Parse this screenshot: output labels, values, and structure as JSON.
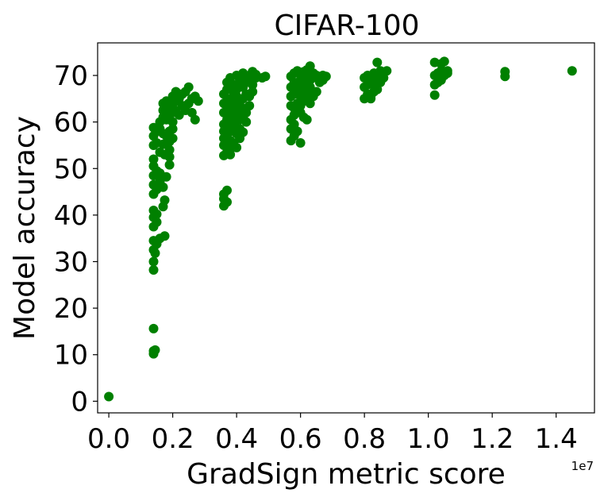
{
  "chart_data": {
    "type": "scatter",
    "title": "CIFAR-100",
    "xlabel": "GradSign metric score",
    "ylabel": "Model accuracy",
    "x_offset_label": "1e7",
    "xlim": [
      -0.035,
      1.52
    ],
    "ylim": [
      -2.5,
      77
    ],
    "xticks": [
      0.0,
      0.2,
      0.4,
      0.6,
      0.8,
      1.0,
      1.2,
      1.4
    ],
    "xtick_labels": [
      "0.0",
      "0.2",
      "0.4",
      "0.6",
      "0.8",
      "1.0",
      "1.2",
      "1.4"
    ],
    "yticks": [
      0,
      10,
      20,
      30,
      40,
      50,
      60,
      70
    ],
    "ytick_labels": [
      "0",
      "10",
      "20",
      "30",
      "40",
      "50",
      "60",
      "70"
    ],
    "grid": false,
    "legend": false,
    "marker_color": "#008000",
    "series": [
      {
        "points": [
          [
            0.0,
            1.0
          ],
          [
            0.14,
            10.2
          ],
          [
            0.14,
            10.8
          ],
          [
            0.145,
            11.0
          ],
          [
            0.14,
            15.6
          ],
          [
            0.14,
            28.2
          ],
          [
            0.14,
            30.0
          ],
          [
            0.145,
            31.8
          ],
          [
            0.14,
            32.5
          ],
          [
            0.15,
            33.8
          ],
          [
            0.14,
            34.5
          ],
          [
            0.16,
            35.0
          ],
          [
            0.175,
            35.5
          ],
          [
            0.14,
            37.5
          ],
          [
            0.15,
            38.5
          ],
          [
            0.14,
            39.5
          ],
          [
            0.15,
            40.2
          ],
          [
            0.14,
            41.0
          ],
          [
            0.17,
            41.8
          ],
          [
            0.175,
            43.2
          ],
          [
            0.14,
            44.5
          ],
          [
            0.15,
            45.5
          ],
          [
            0.14,
            46.5
          ],
          [
            0.16,
            47.2
          ],
          [
            0.17,
            46.0
          ],
          [
            0.14,
            48.5
          ],
          [
            0.15,
            49.5
          ],
          [
            0.14,
            50.5
          ],
          [
            0.16,
            49.0
          ],
          [
            0.18,
            48.2
          ],
          [
            0.19,
            50.8
          ],
          [
            0.14,
            52.0
          ],
          [
            0.16,
            53.5
          ],
          [
            0.175,
            53.0
          ],
          [
            0.19,
            52.5
          ],
          [
            0.14,
            55.0
          ],
          [
            0.15,
            55.5
          ],
          [
            0.17,
            55.2
          ],
          [
            0.19,
            55.8
          ],
          [
            0.14,
            57.0
          ],
          [
            0.15,
            58.0
          ],
          [
            0.16,
            58.5
          ],
          [
            0.14,
            58.8
          ],
          [
            0.17,
            57.5
          ],
          [
            0.18,
            57.0
          ],
          [
            0.19,
            58.0
          ],
          [
            0.2,
            56.5
          ],
          [
            0.16,
            60.0
          ],
          [
            0.17,
            61.0
          ],
          [
            0.18,
            60.5
          ],
          [
            0.19,
            61.5
          ],
          [
            0.2,
            60.0
          ],
          [
            0.17,
            62.5
          ],
          [
            0.18,
            63.0
          ],
          [
            0.19,
            63.5
          ],
          [
            0.2,
            62.0
          ],
          [
            0.17,
            64.0
          ],
          [
            0.18,
            64.5
          ],
          [
            0.19,
            64.0
          ],
          [
            0.2,
            65.5
          ],
          [
            0.21,
            64.5
          ],
          [
            0.22,
            65.0
          ],
          [
            0.23,
            63.5
          ],
          [
            0.24,
            62.5
          ],
          [
            0.2,
            63.0
          ],
          [
            0.21,
            62.5
          ],
          [
            0.22,
            61.5
          ],
          [
            0.23,
            66.0
          ],
          [
            0.24,
            66.5
          ],
          [
            0.25,
            67.5
          ],
          [
            0.25,
            64.0
          ],
          [
            0.26,
            65.0
          ],
          [
            0.27,
            65.5
          ],
          [
            0.28,
            64.5
          ],
          [
            0.26,
            62.0
          ],
          [
            0.27,
            60.5
          ],
          [
            0.21,
            66.5
          ],
          [
            0.22,
            66.0
          ],
          [
            0.24,
            63.5
          ],
          [
            0.2,
            58.5
          ],
          [
            0.19,
            54.0
          ],
          [
            0.36,
            42.0
          ],
          [
            0.37,
            42.8
          ],
          [
            0.36,
            43.5
          ],
          [
            0.36,
            44.5
          ],
          [
            0.37,
            45.3
          ],
          [
            0.36,
            52.8
          ],
          [
            0.37,
            53.5
          ],
          [
            0.38,
            54.2
          ],
          [
            0.36,
            55.0
          ],
          [
            0.37,
            55.5
          ],
          [
            0.38,
            56.0
          ],
          [
            0.39,
            55.5
          ],
          [
            0.4,
            54.5
          ],
          [
            0.36,
            56.5
          ],
          [
            0.37,
            57.0
          ],
          [
            0.36,
            58.0
          ],
          [
            0.37,
            58.5
          ],
          [
            0.38,
            59.0
          ],
          [
            0.39,
            58.0
          ],
          [
            0.4,
            57.5
          ],
          [
            0.41,
            58.5
          ],
          [
            0.42,
            57.8
          ],
          [
            0.36,
            59.5
          ],
          [
            0.37,
            60.5
          ],
          [
            0.38,
            61.0
          ],
          [
            0.39,
            60.0
          ],
          [
            0.4,
            61.5
          ],
          [
            0.41,
            60.5
          ],
          [
            0.42,
            61.0
          ],
          [
            0.43,
            60.0
          ],
          [
            0.36,
            62.0
          ],
          [
            0.37,
            62.5
          ],
          [
            0.38,
            63.0
          ],
          [
            0.39,
            62.0
          ],
          [
            0.4,
            63.5
          ],
          [
            0.41,
            62.5
          ],
          [
            0.42,
            63.0
          ],
          [
            0.43,
            62.0
          ],
          [
            0.44,
            63.5
          ],
          [
            0.36,
            64.0
          ],
          [
            0.37,
            64.5
          ],
          [
            0.38,
            65.0
          ],
          [
            0.39,
            64.0
          ],
          [
            0.4,
            65.5
          ],
          [
            0.41,
            64.5
          ],
          [
            0.42,
            65.0
          ],
          [
            0.43,
            66.0
          ],
          [
            0.44,
            65.5
          ],
          [
            0.45,
            66.5
          ],
          [
            0.36,
            66.0
          ],
          [
            0.37,
            67.0
          ],
          [
            0.38,
            67.5
          ],
          [
            0.39,
            66.5
          ],
          [
            0.4,
            67.0
          ],
          [
            0.41,
            68.0
          ],
          [
            0.42,
            67.5
          ],
          [
            0.43,
            68.5
          ],
          [
            0.44,
            69.0
          ],
          [
            0.45,
            68.0
          ],
          [
            0.46,
            69.5
          ],
          [
            0.37,
            68.5
          ],
          [
            0.38,
            69.5
          ],
          [
            0.39,
            68.0
          ],
          [
            0.4,
            70.0
          ],
          [
            0.41,
            69.0
          ],
          [
            0.42,
            70.5
          ],
          [
            0.43,
            69.5
          ],
          [
            0.44,
            70.0
          ],
          [
            0.45,
            70.8
          ],
          [
            0.46,
            70.2
          ],
          [
            0.48,
            69.5
          ],
          [
            0.49,
            69.8
          ],
          [
            0.4,
            59.5
          ],
          [
            0.41,
            56.5
          ],
          [
            0.38,
            53.0
          ],
          [
            0.57,
            56.0
          ],
          [
            0.58,
            57.0
          ],
          [
            0.59,
            58.0
          ],
          [
            0.6,
            55.5
          ],
          [
            0.57,
            58.5
          ],
          [
            0.58,
            59.5
          ],
          [
            0.57,
            60.5
          ],
          [
            0.58,
            61.5
          ],
          [
            0.59,
            62.5
          ],
          [
            0.57,
            63.5
          ],
          [
            0.58,
            63.0
          ],
          [
            0.59,
            64.0
          ],
          [
            0.6,
            63.5
          ],
          [
            0.61,
            64.5
          ],
          [
            0.62,
            65.0
          ],
          [
            0.63,
            64.0
          ],
          [
            0.57,
            65.5
          ],
          [
            0.58,
            66.0
          ],
          [
            0.59,
            66.5
          ],
          [
            0.6,
            65.5
          ],
          [
            0.61,
            67.0
          ],
          [
            0.62,
            66.5
          ],
          [
            0.63,
            67.5
          ],
          [
            0.64,
            66.0
          ],
          [
            0.57,
            67.5
          ],
          [
            0.58,
            68.5
          ],
          [
            0.59,
            68.0
          ],
          [
            0.6,
            69.0
          ],
          [
            0.61,
            68.5
          ],
          [
            0.62,
            69.5
          ],
          [
            0.63,
            69.0
          ],
          [
            0.64,
            70.0
          ],
          [
            0.65,
            69.5
          ],
          [
            0.57,
            69.8
          ],
          [
            0.58,
            70.5
          ],
          [
            0.59,
            71.0
          ],
          [
            0.6,
            70.2
          ],
          [
            0.61,
            70.8
          ],
          [
            0.62,
            71.2
          ],
          [
            0.63,
            72.0
          ],
          [
            0.64,
            70.5
          ],
          [
            0.65,
            70.0
          ],
          [
            0.66,
            69.5
          ],
          [
            0.67,
            70.0
          ],
          [
            0.68,
            69.8
          ],
          [
            0.6,
            62.0
          ],
          [
            0.61,
            61.0
          ],
          [
            0.62,
            60.5
          ],
          [
            0.64,
            65.5
          ],
          [
            0.65,
            66.5
          ],
          [
            0.66,
            68.5
          ],
          [
            0.67,
            69.0
          ],
          [
            0.8,
            65.0
          ],
          [
            0.81,
            66.0
          ],
          [
            0.82,
            65.5
          ],
          [
            0.83,
            66.5
          ],
          [
            0.84,
            67.0
          ],
          [
            0.8,
            67.5
          ],
          [
            0.81,
            68.0
          ],
          [
            0.82,
            68.5
          ],
          [
            0.83,
            68.0
          ],
          [
            0.84,
            69.0
          ],
          [
            0.85,
            68.5
          ],
          [
            0.86,
            69.5
          ],
          [
            0.8,
            69.5
          ],
          [
            0.81,
            70.0
          ],
          [
            0.82,
            69.8
          ],
          [
            0.83,
            70.5
          ],
          [
            0.84,
            70.0
          ],
          [
            0.85,
            71.0
          ],
          [
            0.86,
            70.5
          ],
          [
            0.87,
            71.0
          ],
          [
            0.84,
            72.8
          ],
          [
            0.82,
            65.0
          ],
          [
            1.02,
            65.8
          ],
          [
            1.02,
            68.0
          ],
          [
            1.03,
            68.5
          ],
          [
            1.04,
            69.0
          ],
          [
            1.02,
            70.0
          ],
          [
            1.03,
            70.5
          ],
          [
            1.04,
            71.0
          ],
          [
            1.05,
            70.0
          ],
          [
            1.06,
            70.5
          ],
          [
            1.02,
            72.8
          ],
          [
            1.04,
            72.5
          ],
          [
            1.05,
            73.0
          ],
          [
            1.06,
            71.0
          ],
          [
            1.24,
            69.8
          ],
          [
            1.24,
            70.8
          ],
          [
            1.45,
            71.0
          ]
        ]
      }
    ]
  }
}
